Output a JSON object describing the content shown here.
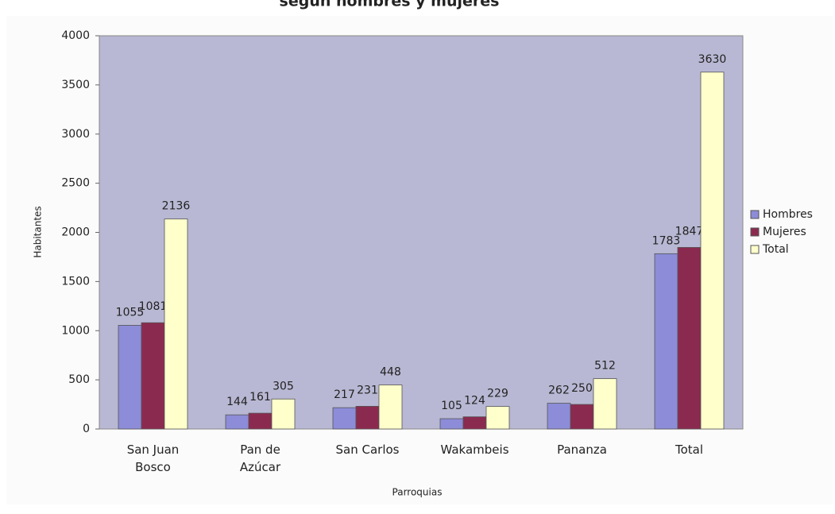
{
  "chart_data": {
    "type": "bar",
    "title": "según hombres y mujeres",
    "x_label": "Parroquias",
    "y_label": "Habitantes",
    "categories": [
      "San Juan Bosco",
      "Pan de Azúcar",
      "San Carlos",
      "Wakambeis",
      "Pananza",
      "Total"
    ],
    "series": [
      {
        "name": "Hombres",
        "color": "#8c8cd8",
        "values": [
          1055,
          144,
          217,
          105,
          262,
          1783
        ]
      },
      {
        "name": "Mujeres",
        "color": "#8b2a4f",
        "values": [
          1081,
          161,
          231,
          124,
          250,
          1847
        ]
      },
      {
        "name": "Total",
        "color": "#ffffcc",
        "values": [
          2136,
          305,
          448,
          229,
          512,
          3630
        ]
      }
    ],
    "ylim": [
      0,
      4000
    ],
    "yticks": [
      0,
      500,
      1000,
      1500,
      2000,
      2500,
      3000,
      3500,
      4000
    ],
    "legend": "right"
  }
}
